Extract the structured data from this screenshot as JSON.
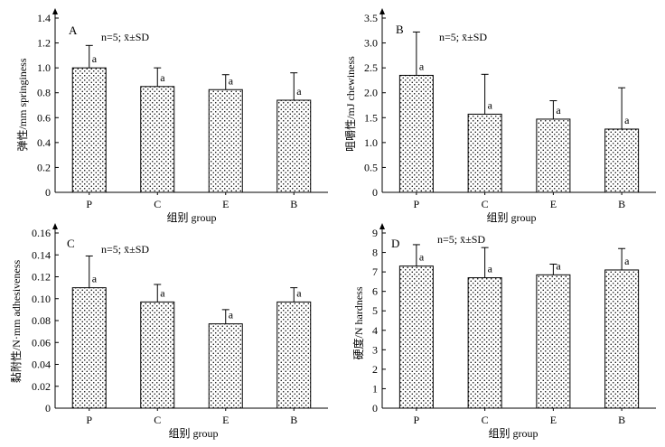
{
  "chart_data": [
    {
      "panel_label": "A",
      "type": "bar",
      "annotation": "n=5; x̄±SD",
      "xlabel": "组别 group",
      "ylabel": "弹性/mm springiness",
      "categories": [
        "P",
        "C",
        "E",
        "B"
      ],
      "values": [
        1.0,
        0.85,
        0.825,
        0.74
      ],
      "errors": [
        0.18,
        0.15,
        0.12,
        0.22
      ],
      "sig_labels": [
        "a",
        "a",
        "a",
        "a"
      ],
      "ylim": [
        0,
        1.4
      ],
      "yticks": [
        "0",
        "0.2",
        "0.4",
        "0.6",
        "0.8",
        "1.0",
        "1.2",
        "1.4"
      ]
    },
    {
      "panel_label": "B",
      "type": "bar",
      "annotation": "n=5; x̄±SD",
      "xlabel": "组别 group",
      "ylabel": "咀嚼性/mJ chewiness",
      "categories": [
        "P",
        "C",
        "E",
        "B"
      ],
      "values": [
        2.35,
        1.57,
        1.47,
        1.27
      ],
      "errors": [
        0.87,
        0.8,
        0.37,
        0.83
      ],
      "sig_labels": [
        "a",
        "a",
        "a",
        "a"
      ],
      "ylim": [
        0,
        3.5
      ],
      "yticks": [
        "0",
        "0.5",
        "1.0",
        "1.5",
        "2.0",
        "2.5",
        "3.0",
        "3.5"
      ]
    },
    {
      "panel_label": "C",
      "type": "bar",
      "annotation": "n=5; x̄±SD",
      "xlabel": "组别 group",
      "ylabel": "黏附性/N·mm adhesiveness",
      "categories": [
        "P",
        "C",
        "E",
        "B"
      ],
      "values": [
        0.11,
        0.097,
        0.077,
        0.097
      ],
      "errors": [
        0.029,
        0.016,
        0.013,
        0.013
      ],
      "sig_labels": [
        "a",
        "a",
        "a",
        "a"
      ],
      "ylim": [
        0,
        0.16
      ],
      "yticks": [
        "0",
        "0.02",
        "0.04",
        "0.06",
        "0.08",
        "0.10",
        "0.12",
        "0.14",
        "0.16"
      ]
    },
    {
      "panel_label": "D",
      "type": "bar",
      "annotation": "n=5; x̄±SD",
      "xlabel": "组别 group",
      "ylabel": "硬度/N hardness",
      "categories": [
        "P",
        "C",
        "E",
        "B"
      ],
      "values": [
        7.3,
        6.7,
        6.85,
        7.1
      ],
      "errors": [
        1.1,
        1.55,
        0.55,
        1.1
      ],
      "sig_labels": [
        "a",
        "a",
        "a",
        "a"
      ],
      "ylim": [
        0,
        9
      ],
      "yticks": [
        "0",
        "1",
        "2",
        "3",
        "4",
        "5",
        "6",
        "7",
        "8",
        "9"
      ]
    }
  ]
}
